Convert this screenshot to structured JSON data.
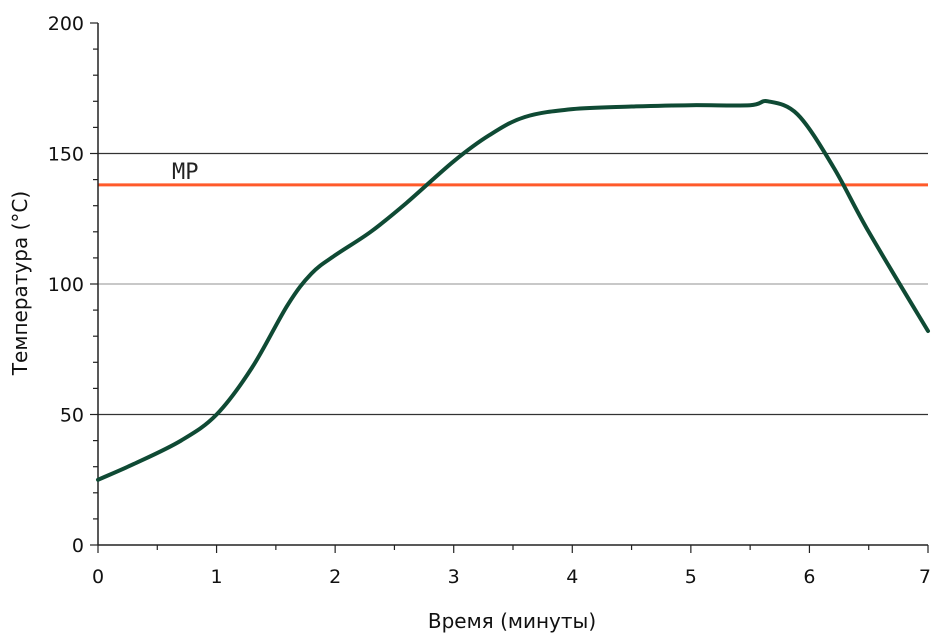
{
  "chart_data": {
    "type": "line",
    "xlabel": "Время (минуты)",
    "ylabel": "Температура (°C)",
    "xlim": [
      0,
      7
    ],
    "ylim": [
      0,
      200
    ],
    "x_ticks": [
      "0",
      "1",
      "2",
      "3",
      "4",
      "5",
      "6",
      "7"
    ],
    "y_ticks": [
      "0",
      "50",
      "100",
      "150",
      "200"
    ],
    "gridlines_y": [
      50,
      100,
      150
    ],
    "series": [
      {
        "color": "#0f4a34",
        "points": [
          {
            "x": 0.0,
            "y": 25
          },
          {
            "x": 0.3,
            "y": 31
          },
          {
            "x": 0.7,
            "y": 40
          },
          {
            "x": 1.0,
            "y": 50
          },
          {
            "x": 1.3,
            "y": 68
          },
          {
            "x": 1.6,
            "y": 92
          },
          {
            "x": 1.8,
            "y": 104
          },
          {
            "x": 2.0,
            "y": 111
          },
          {
            "x": 2.3,
            "y": 120
          },
          {
            "x": 2.6,
            "y": 131
          },
          {
            "x": 3.0,
            "y": 147
          },
          {
            "x": 3.3,
            "y": 157
          },
          {
            "x": 3.6,
            "y": 164
          },
          {
            "x": 4.0,
            "y": 167
          },
          {
            "x": 4.5,
            "y": 168
          },
          {
            "x": 5.0,
            "y": 168.5
          },
          {
            "x": 5.5,
            "y": 168.5
          },
          {
            "x": 5.65,
            "y": 170
          },
          {
            "x": 5.9,
            "y": 165
          },
          {
            "x": 6.2,
            "y": 145
          },
          {
            "x": 6.5,
            "y": 120
          },
          {
            "x": 7.0,
            "y": 82
          }
        ]
      }
    ],
    "reference_line": {
      "label": "MP",
      "y": 138,
      "color": "#ff5a2a"
    }
  },
  "colors": {
    "axis": "#222222",
    "grid_dark": "#333333",
    "grid_light": "#c8c8c8"
  }
}
